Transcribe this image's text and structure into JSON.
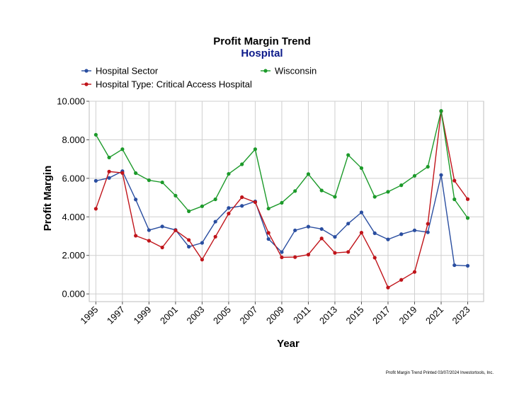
{
  "chart_data": {
    "type": "line",
    "title": "Profit Margin Trend",
    "subtitle": "Hospital",
    "xlabel": "Year",
    "ylabel": "Profit Margin",
    "ylim": [
      0,
      10
    ],
    "yticks": [
      "0.000",
      "2.000",
      "4.000",
      "6.000",
      "8.000",
      "10.000"
    ],
    "ytick_values": [
      0,
      2,
      4,
      6,
      8,
      10
    ],
    "xticks": [
      "1995",
      "1997",
      "1999",
      "2001",
      "2003",
      "2005",
      "2007",
      "2009",
      "2011",
      "2013",
      "2015",
      "2017",
      "2019",
      "2021",
      "2023"
    ],
    "grid": true,
    "legend_position": "top",
    "x": [
      1995,
      1996,
      1997,
      1998,
      1999,
      2000,
      2001,
      2002,
      2003,
      2004,
      2005,
      2006,
      2007,
      2008,
      2009,
      2010,
      2011,
      2012,
      2013,
      2014,
      2015,
      2016,
      2017,
      2018,
      2019,
      2020,
      2021,
      2022,
      2023
    ],
    "series": [
      {
        "name": "Hospital Sector",
        "color": "#2a4ea0",
        "values": [
          5.87,
          6.02,
          6.37,
          4.9,
          3.31,
          3.5,
          3.32,
          2.45,
          2.65,
          3.75,
          4.46,
          4.57,
          4.8,
          2.85,
          2.17,
          3.3,
          3.49,
          3.37,
          2.96,
          3.65,
          4.23,
          3.15,
          2.83,
          3.1,
          3.3,
          3.2,
          6.17,
          1.49,
          1.46
        ]
      },
      {
        "name": "Hospital Type: Critical Access Hospital",
        "color": "#c0141a",
        "values": [
          4.42,
          6.35,
          6.28,
          3.02,
          2.76,
          2.41,
          3.3,
          2.8,
          1.78,
          2.97,
          4.17,
          5.02,
          4.76,
          3.17,
          1.9,
          1.91,
          2.04,
          2.88,
          2.13,
          2.18,
          3.18,
          1.88,
          0.33,
          0.73,
          1.14,
          3.64,
          9.48,
          5.88,
          4.92
        ]
      },
      {
        "name": "Wisconsin",
        "color": "#1c9a2a",
        "values": [
          8.26,
          7.08,
          7.51,
          6.27,
          5.9,
          5.79,
          5.1,
          4.29,
          4.55,
          4.91,
          6.23,
          6.73,
          7.51,
          4.43,
          4.73,
          5.34,
          6.22,
          5.37,
          5.04,
          7.21,
          6.53,
          5.04,
          5.3,
          5.64,
          6.13,
          6.6,
          9.5,
          4.91,
          3.94
        ]
      }
    ],
    "footer": "Profit Margin Trend  Printed 03/07/2024  Investortools, Inc."
  }
}
